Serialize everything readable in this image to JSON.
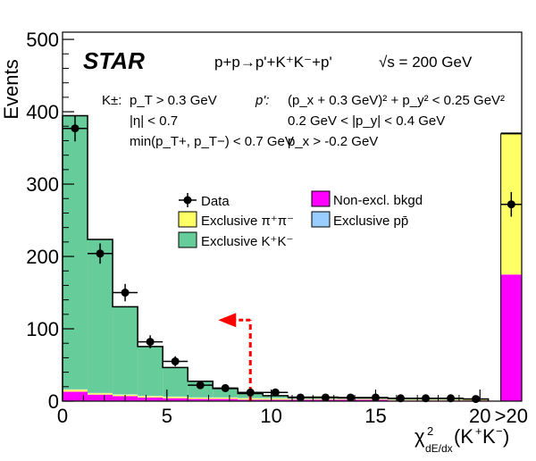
{
  "chart_data": {
    "type": "bar",
    "experiment": "STAR",
    "process": "p+p→p'+K⁺K⁻+p'",
    "energy": "√s = 200 GeV",
    "xlabel": "χ²dE/dx(K⁺K⁻)",
    "ylabel": "Events",
    "xlim": [
      0,
      22
    ],
    "ylim": [
      0,
      510
    ],
    "x_ticks": [
      "0",
      "5",
      "10",
      "15",
      "20"
    ],
    "overflow_tick": ">20",
    "y_ticks": [
      0,
      100,
      200,
      300,
      400,
      500
    ],
    "grid": false,
    "cuts": {
      "kaon_label": "K±:",
      "kaon": [
        "p_T > 0.3 GeV",
        "|η| < 0.7",
        "min(p_T+, p_T−) < 0.7 GeV"
      ],
      "proton_label": "p':",
      "proton": [
        "(p_x + 0.3 GeV)² + p_y² < 0.25 GeV²",
        "0.2 GeV < |p_y| < 0.4 GeV",
        "p_x > -0.2 GeV"
      ]
    },
    "bin_edges": [
      0,
      1.2,
      2.4,
      3.6,
      4.8,
      6.0,
      7.2,
      8.4,
      9.6,
      10.8,
      12.0,
      13.2,
      14.4,
      15.6,
      16.8,
      18.0,
      19.2,
      20.4
    ],
    "overflow_bin": [
      21.0,
      22.0
    ],
    "series": [
      {
        "name": "Non-excl. bkgd",
        "color": "#ff00ff",
        "values": [
          13,
          9,
          7,
          5,
          4,
          3,
          3,
          2,
          2,
          2,
          2,
          2,
          2,
          1,
          1,
          1,
          1
        ],
        "overflow": 175
      },
      {
        "name": "Exclusive π⁺π⁻",
        "color": "#ffff66",
        "values": [
          3,
          2,
          2,
          2,
          2,
          2,
          2,
          2,
          2,
          1,
          1,
          1,
          1,
          1,
          1,
          1,
          1
        ],
        "overflow": 195
      },
      {
        "name": "Exclusive pp̄",
        "color": "#99ccff",
        "values": [
          0.5,
          0.5,
          0.5,
          0.5,
          0.5,
          0.5,
          0.5,
          0.5,
          0.5,
          0.5,
          0.5,
          0.5,
          0.5,
          0.5,
          0.5,
          0.5,
          0.5
        ],
        "overflow": 0
      },
      {
        "name": "Exclusive K⁺K⁻",
        "color": "#66cc99",
        "values": [
          378,
          212,
          121,
          68,
          40,
          22,
          12,
          6,
          3,
          2,
          2,
          1,
          1,
          1,
          1,
          1,
          0.5
        ],
        "overflow": 0
      }
    ],
    "data": {
      "name": "Data",
      "points": [
        {
          "x": 0.6,
          "y": 377,
          "err": 18
        },
        {
          "x": 1.8,
          "y": 204,
          "err": 14
        },
        {
          "x": 3.0,
          "y": 150,
          "err": 12
        },
        {
          "x": 4.2,
          "y": 82,
          "err": 9
        },
        {
          "x": 5.4,
          "y": 55,
          "err": 7
        },
        {
          "x": 6.6,
          "y": 22,
          "err": 4
        },
        {
          "x": 7.8,
          "y": 18,
          "err": 4
        },
        {
          "x": 9.0,
          "y": 12,
          "err": 3
        },
        {
          "x": 10.2,
          "y": 12,
          "err": 3
        },
        {
          "x": 11.4,
          "y": 5,
          "err": 2
        },
        {
          "x": 12.6,
          "y": 5,
          "err": 2
        },
        {
          "x": 13.8,
          "y": 5,
          "err": 2
        },
        {
          "x": 15.0,
          "y": 5,
          "err": 2
        },
        {
          "x": 16.2,
          "y": 4,
          "err": 2
        },
        {
          "x": 17.4,
          "y": 4,
          "err": 2
        },
        {
          "x": 18.6,
          "y": 4,
          "err": 2
        },
        {
          "x": 19.8,
          "y": 3,
          "err": 2
        }
      ],
      "overflow": {
        "y": 272,
        "err": 17
      }
    },
    "cut_line": {
      "x": 9,
      "y": 112,
      "color": "#ff0000"
    },
    "legend": [
      {
        "label": "Data",
        "kind": "marker"
      },
      {
        "label": "Non-excl. bkgd",
        "kind": "box",
        "color": "#ff00ff"
      },
      {
        "label": "Exclusive π⁺π⁻",
        "kind": "box",
        "color": "#ffff66"
      },
      {
        "label": "Exclusive pp̄",
        "kind": "box",
        "color": "#99ccff"
      },
      {
        "label": "Exclusive K⁺K⁻",
        "kind": "box",
        "color": "#66cc99"
      }
    ]
  }
}
